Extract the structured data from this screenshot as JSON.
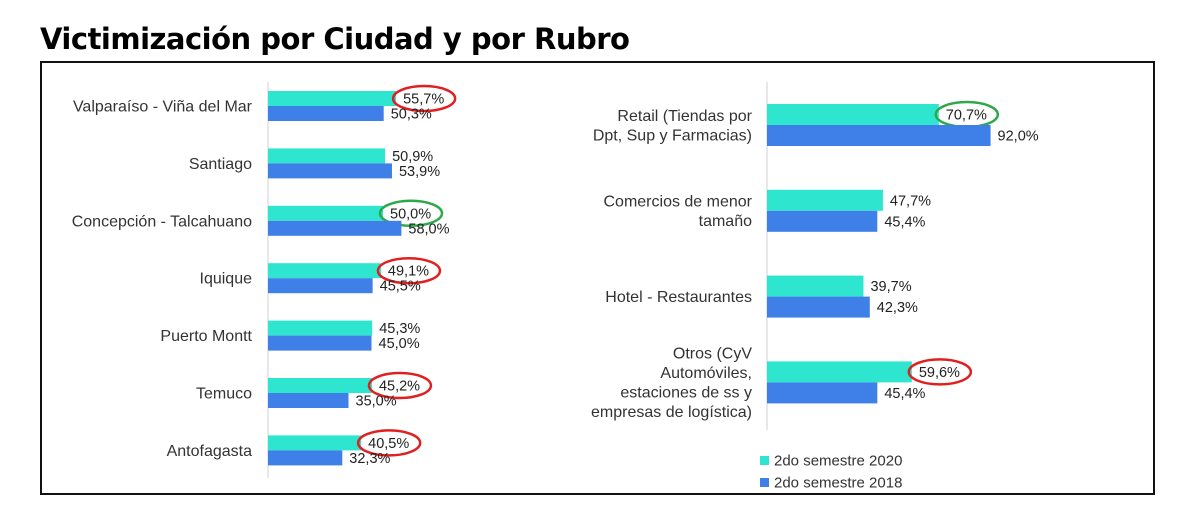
{
  "title": "Victimización por Ciudad y por Rubro",
  "colors": {
    "series_2020": "#2ee6d0",
    "series_2018": "#3f7fe8",
    "highlight_red": "#e02020",
    "highlight_green": "#2ea84a"
  },
  "legend": [
    "2do semestre 2020",
    "2do semestre 2018"
  ],
  "chart_data": [
    {
      "type": "bar",
      "orientation": "horizontal",
      "title": "",
      "categories": [
        "Valparaíso - Viña del Mar",
        "Santiago",
        "Concepción - Talcahuano",
        "Iquique",
        "Puerto Montt",
        "Temuco",
        "Antofagasta"
      ],
      "series": [
        {
          "name": "2do semestre 2020",
          "values": [
            55.7,
            50.9,
            50.0,
            49.1,
            45.3,
            45.2,
            40.5
          ],
          "labels": [
            "55,7%",
            "50,9%",
            "50,0%",
            "49,1%",
            "45,3%",
            "45,2%",
            "40,5%"
          ]
        },
        {
          "name": "2do semestre 2018",
          "values": [
            50.3,
            53.9,
            58.0,
            45.5,
            45.0,
            35.0,
            32.3
          ],
          "labels": [
            "50,3%",
            "53,9%",
            "58,0%",
            "45,5%",
            "45,0%",
            "35,0%",
            "32,3%"
          ]
        }
      ],
      "highlights": [
        {
          "category": "Valparaíso - Viña del Mar",
          "series": "2do semestre 2020",
          "color": "red"
        },
        {
          "category": "Concepción - Talcahuano",
          "series": "2do semestre 2020",
          "color": "green"
        },
        {
          "category": "Iquique",
          "series": "2do semestre 2020",
          "color": "red"
        },
        {
          "category": "Temuco",
          "series": "2do semestre 2020",
          "color": "red"
        },
        {
          "category": "Antofagasta",
          "series": "2do semestre 2020",
          "color": "red"
        }
      ]
    },
    {
      "type": "bar",
      "orientation": "horizontal",
      "title": "",
      "categories": [
        "Retail (Tiendas por Dpt, Sup y Farmacias)",
        "Comercios de menor tamaño",
        "Hotel - Restaurantes",
        "Otros (CyV Automóviles, estaciones de ss y empresas de logística)"
      ],
      "category_lines": [
        [
          "Retail (Tiendas por",
          "Dpt, Sup y Farmacias)"
        ],
        [
          "Comercios de menor",
          "tamaño"
        ],
        [
          "Hotel - Restaurantes"
        ],
        [
          "Otros (CyV",
          "Automóviles,",
          "estaciones de ss y",
          "empresas de logística)"
        ]
      ],
      "series": [
        {
          "name": "2do semestre 2020",
          "values": [
            70.7,
            47.7,
            39.7,
            59.6
          ],
          "labels": [
            "70,7%",
            "47,7%",
            "39,7%",
            "59,6%"
          ]
        },
        {
          "name": "2do semestre 2018",
          "values": [
            92.0,
            45.4,
            42.3,
            45.4
          ],
          "labels": [
            "92,0%",
            "45,4%",
            "42,3%",
            "45,4%"
          ]
        }
      ],
      "highlights": [
        {
          "category": "Retail (Tiendas por Dpt, Sup y Farmacias)",
          "series": "2do semestre 2020",
          "color": "green"
        },
        {
          "category": "Otros (CyV Automóviles, estaciones de ss y empresas de logística)",
          "series": "2do semestre 2020",
          "color": "red"
        }
      ]
    }
  ]
}
